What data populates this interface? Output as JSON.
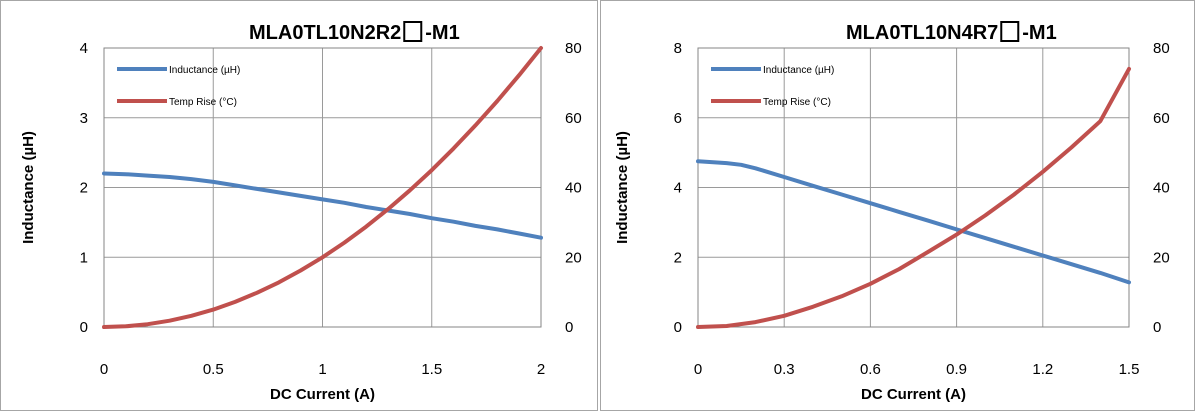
{
  "chart_data": [
    {
      "type": "line",
      "title_prefix": "MLA0TL10N2R2",
      "title_suffix": "-M1",
      "xlabel": "DC Current (A)",
      "ylabel": "Inductance (µH)",
      "xlim": [
        0,
        2
      ],
      "ylim": [
        0,
        4
      ],
      "y2lim": [
        0,
        80
      ],
      "x_ticks": [
        0,
        0.5,
        1,
        1.5,
        2
      ],
      "x_tick_labels": [
        "0",
        "0.5",
        "1",
        "1.5",
        "2"
      ],
      "y_ticks": [
        0,
        1,
        2,
        3,
        4
      ],
      "y_tick_labels": [
        "0",
        "1",
        "2",
        "3",
        "4"
      ],
      "y2_ticks": [
        0,
        20,
        40,
        60,
        80
      ],
      "y2_tick_labels": [
        "0",
        "20",
        "40",
        "60",
        "80"
      ],
      "grid": true,
      "legend_position": "top-left",
      "series": [
        {
          "name": "Inductance (µH)",
          "axis": "left",
          "color": "#4f81bd",
          "x": [
            0,
            0.1,
            0.2,
            0.3,
            0.4,
            0.5,
            0.6,
            0.7,
            0.8,
            0.9,
            1.0,
            1.1,
            1.2,
            1.3,
            1.4,
            1.5,
            1.6,
            1.7,
            1.8,
            1.9,
            2.0
          ],
          "y": [
            2.2,
            2.19,
            2.17,
            2.15,
            2.12,
            2.08,
            2.03,
            1.98,
            1.93,
            1.88,
            1.83,
            1.78,
            1.72,
            1.67,
            1.62,
            1.56,
            1.51,
            1.45,
            1.4,
            1.34,
            1.28
          ]
        },
        {
          "name": "Temp Rise (°C)",
          "axis": "right",
          "color": "#c0504d",
          "x": [
            0,
            0.1,
            0.2,
            0.3,
            0.4,
            0.5,
            0.6,
            0.7,
            0.8,
            0.9,
            1.0,
            1.1,
            1.2,
            1.3,
            1.4,
            1.5,
            1.6,
            1.7,
            1.8,
            1.9,
            2.0
          ],
          "y": [
            0,
            0.2,
            0.8,
            1.8,
            3.2,
            5,
            7.2,
            9.8,
            12.8,
            16.2,
            20,
            24.2,
            28.8,
            33.8,
            39.2,
            45,
            51.2,
            57.8,
            64.8,
            72.2,
            80
          ]
        }
      ]
    },
    {
      "type": "line",
      "title_prefix": "MLA0TL10N4R7",
      "title_suffix": "-M1",
      "xlabel": "DC Current (A)",
      "ylabel": "Inductance (µH)",
      "xlim": [
        0,
        1.5
      ],
      "ylim": [
        0,
        8
      ],
      "y2lim": [
        0,
        80
      ],
      "x_ticks": [
        0,
        0.3,
        0.6,
        0.9,
        1.2,
        1.5
      ],
      "x_tick_labels": [
        "0",
        "0.3",
        "0.6",
        "0.9",
        "1.2",
        "1.5"
      ],
      "y_ticks": [
        0,
        2,
        4,
        6,
        8
      ],
      "y_tick_labels": [
        "0",
        "2",
        "4",
        "6",
        "8"
      ],
      "y2_ticks": [
        0,
        20,
        40,
        60,
        80
      ],
      "y2_tick_labels": [
        "0",
        "20",
        "40",
        "60",
        "80"
      ],
      "grid": true,
      "legend_position": "top-left",
      "series": [
        {
          "name": "Inductance (µH)",
          "axis": "left",
          "color": "#4f81bd",
          "x": [
            0,
            0.1,
            0.15,
            0.2,
            0.3,
            0.4,
            0.5,
            0.6,
            0.7,
            0.8,
            0.9,
            1.0,
            1.1,
            1.2,
            1.3,
            1.4,
            1.5
          ],
          "y": [
            4.75,
            4.7,
            4.65,
            4.55,
            4.3,
            4.05,
            3.8,
            3.55,
            3.3,
            3.05,
            2.8,
            2.55,
            2.3,
            2.05,
            1.8,
            1.55,
            1.28
          ]
        },
        {
          "name": "Temp Rise (°C)",
          "axis": "right",
          "color": "#c0504d",
          "x": [
            0,
            0.1,
            0.2,
            0.3,
            0.4,
            0.5,
            0.6,
            0.7,
            0.8,
            0.9,
            1.0,
            1.1,
            1.2,
            1.3,
            1.4,
            1.5
          ],
          "y": [
            0,
            0.3,
            1.4,
            3.2,
            5.8,
            8.8,
            12.4,
            16.6,
            21.5,
            26.5,
            32,
            38,
            44.5,
            51.5,
            59,
            74
          ]
        }
      ]
    }
  ]
}
